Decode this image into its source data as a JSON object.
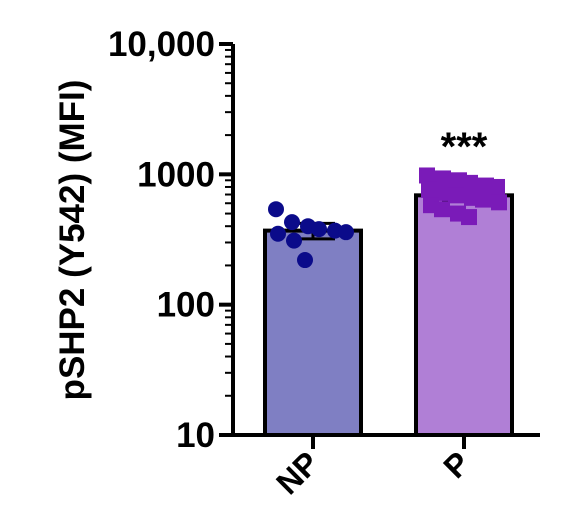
{
  "chart_data": {
    "type": "bar",
    "title": "",
    "xlabel": "",
    "ylabel": "pSHP2 (Y542) (MFI)",
    "yscale": "log",
    "ylim": [
      10,
      10000
    ],
    "yticks": [
      10,
      100,
      1000,
      10000
    ],
    "ytick_labels": [
      "10",
      "100",
      "1000",
      "10,000"
    ],
    "categories": [
      "NP",
      "P"
    ],
    "bars": [
      {
        "category": "NP",
        "mean": 370,
        "error_low": 320,
        "error_high": 420,
        "fill": "#7f7fc3",
        "point_color": "#0b0b8a",
        "point_shape": "circle",
        "points": [
          540,
          430,
          400,
          380,
          370,
          360,
          350,
          310,
          220
        ]
      },
      {
        "category": "P",
        "mean": 690,
        "error_low": 630,
        "error_high": 750,
        "fill": "#b07fd6",
        "point_color": "#7a1bb8",
        "point_shape": "square",
        "points": [
          980,
          930,
          900,
          860,
          820,
          800,
          760,
          720,
          690,
          660,
          640,
          610,
          580,
          540,
          500,
          470
        ]
      }
    ],
    "annotations": [
      {
        "category": "P",
        "text": "***"
      }
    ],
    "grid": false,
    "legend": "none"
  }
}
